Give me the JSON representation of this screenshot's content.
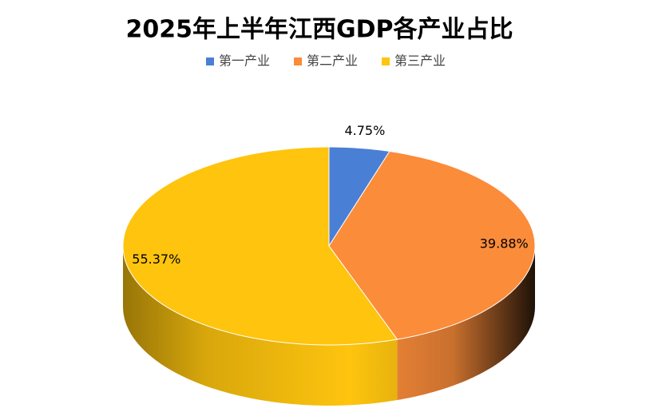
{
  "chart_data": {
    "type": "pie",
    "title": "2025年上半年江西GDP各产业占比",
    "categories": [
      "第一产业",
      "第二产业",
      "第三产业"
    ],
    "values": [
      4.75,
      39.88,
      55.37
    ],
    "value_labels": [
      "4.75%",
      "39.88%",
      "55.37%"
    ],
    "colors": [
      "#4a7fd6",
      "#fb8c3a",
      "#fec40e"
    ],
    "legend": "top"
  }
}
